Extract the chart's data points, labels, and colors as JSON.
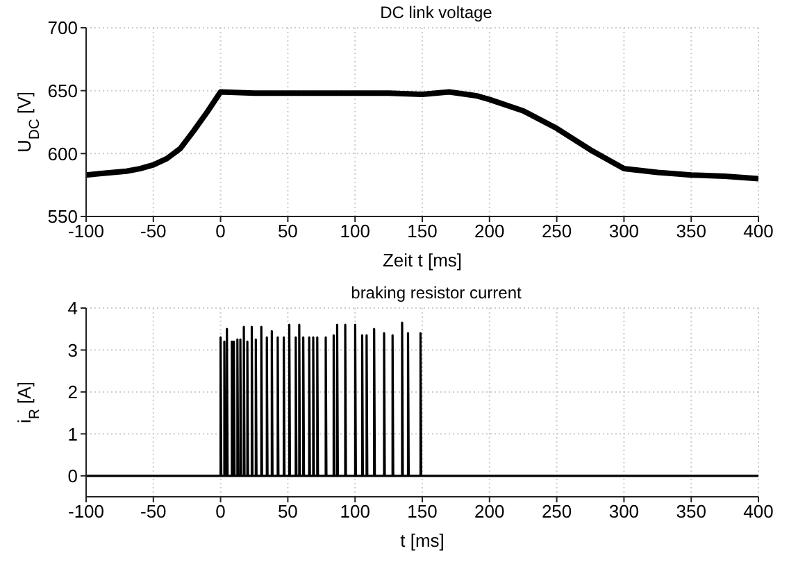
{
  "chart_data": [
    {
      "type": "line",
      "title": "DC link voltage",
      "xlabel": "Zeit t [ms]",
      "ylabel": "U$_{DC}$ [V]",
      "xlim": [
        -100,
        400
      ],
      "xticks": [
        -100,
        -50,
        0,
        50,
        100,
        150,
        200,
        250,
        300,
        350,
        400
      ],
      "ylim": [
        550,
        700
      ],
      "yticks": [
        550,
        600,
        650,
        700
      ],
      "grid": true,
      "line_style": "solid",
      "series": [
        {
          "color": "#000000",
          "x": [
            -100,
            -90,
            -80,
            -70,
            -60,
            -50,
            -40,
            -30,
            -20,
            -10,
            0,
            25,
            50,
            75,
            100,
            125,
            150,
            170,
            190,
            200,
            225,
            250,
            275,
            300,
            325,
            350,
            375,
            400
          ],
          "values": [
            583,
            584,
            585,
            586,
            588,
            591,
            596,
            604,
            618,
            633,
            649,
            648,
            648,
            648,
            648,
            648,
            647,
            649,
            646,
            643,
            634,
            620,
            603,
            588,
            585,
            583,
            582,
            580
          ]
        }
      ]
    },
    {
      "type": "line",
      "title": "braking resistor current",
      "xlabel": "t [ms]",
      "ylabel": "i$_{R}$ [A]",
      "xlim": [
        -100,
        400
      ],
      "xticks": [
        -100,
        -50,
        0,
        50,
        100,
        150,
        200,
        250,
        300,
        350,
        400
      ],
      "ylim": [
        -0.5,
        4
      ],
      "yticks": [
        0,
        1,
        2,
        3,
        4
      ],
      "grid": true,
      "line_style": "solid",
      "series": [
        {
          "color": "#000000",
          "x": [
            -100,
            0,
            0,
            0.5,
            2.8,
            2.8,
            3.3,
            4.7,
            4.7,
            5.2,
            8.4,
            8.4,
            8.9,
            9.9,
            9.9,
            10.4,
            12.5,
            12.5,
            13,
            14.7,
            14.7,
            15.2,
            17.3,
            17.3,
            17.8,
            19.9,
            19.9,
            20.4,
            23.2,
            23.2,
            23.7,
            26.2,
            26.2,
            26.7,
            30.3,
            30.3,
            30.8,
            34.4,
            34.4,
            34.9,
            38.1,
            38.1,
            38.6,
            42.5,
            42.5,
            43,
            47,
            47,
            47.5,
            51.1,
            51.1,
            51.6,
            55.9,
            55.9,
            56.4,
            58.5,
            58.5,
            59,
            61.5,
            61.5,
            62,
            65.9,
            65.9,
            66.4,
            68.9,
            68.9,
            69.4,
            71.9,
            71.9,
            72.4,
            78.2,
            78.2,
            78.7,
            84.1,
            84.1,
            84.6,
            86.7,
            86.7,
            87.2,
            92.7,
            92.7,
            93.2,
            100.1,
            100.1,
            100.6,
            105.3,
            105.3,
            105.8,
            108.6,
            108.6,
            109.1,
            114.2,
            114.2,
            114.7,
            121.6,
            121.6,
            122.1,
            127.9,
            127.9,
            128.4,
            135,
            135,
            135.5,
            139.4,
            139.4,
            139.9,
            148.7,
            148.7,
            149.2,
            400
          ],
          "values": [
            0,
            0,
            3.3,
            0,
            0,
            3.2,
            0,
            0,
            3.5,
            0,
            0,
            3.2,
            0,
            0,
            3.2,
            0,
            0,
            3.25,
            0,
            0,
            3.25,
            0,
            0,
            3.55,
            0,
            0,
            3.2,
            0,
            0,
            3.55,
            0,
            0,
            3.25,
            0,
            0,
            3.55,
            0,
            0,
            3.3,
            0,
            0,
            3.45,
            0,
            0,
            3.3,
            0,
            0,
            3.3,
            0,
            0,
            3.6,
            0,
            0,
            3.3,
            0,
            0,
            3.6,
            0,
            0,
            3.3,
            0,
            0,
            3.3,
            0,
            0,
            3.3,
            0,
            0,
            3.3,
            0,
            0,
            3.3,
            0,
            0,
            3.35,
            0,
            0,
            3.6,
            0,
            0,
            3.6,
            0,
            0,
            3.6,
            0,
            0,
            3.35,
            0,
            0,
            3.35,
            0,
            0,
            3.5,
            0,
            0,
            3.4,
            0,
            0,
            3.35,
            0,
            0,
            3.65,
            0,
            0,
            3.4,
            0,
            0,
            3.4,
            0,
            0
          ]
        }
      ]
    }
  ]
}
